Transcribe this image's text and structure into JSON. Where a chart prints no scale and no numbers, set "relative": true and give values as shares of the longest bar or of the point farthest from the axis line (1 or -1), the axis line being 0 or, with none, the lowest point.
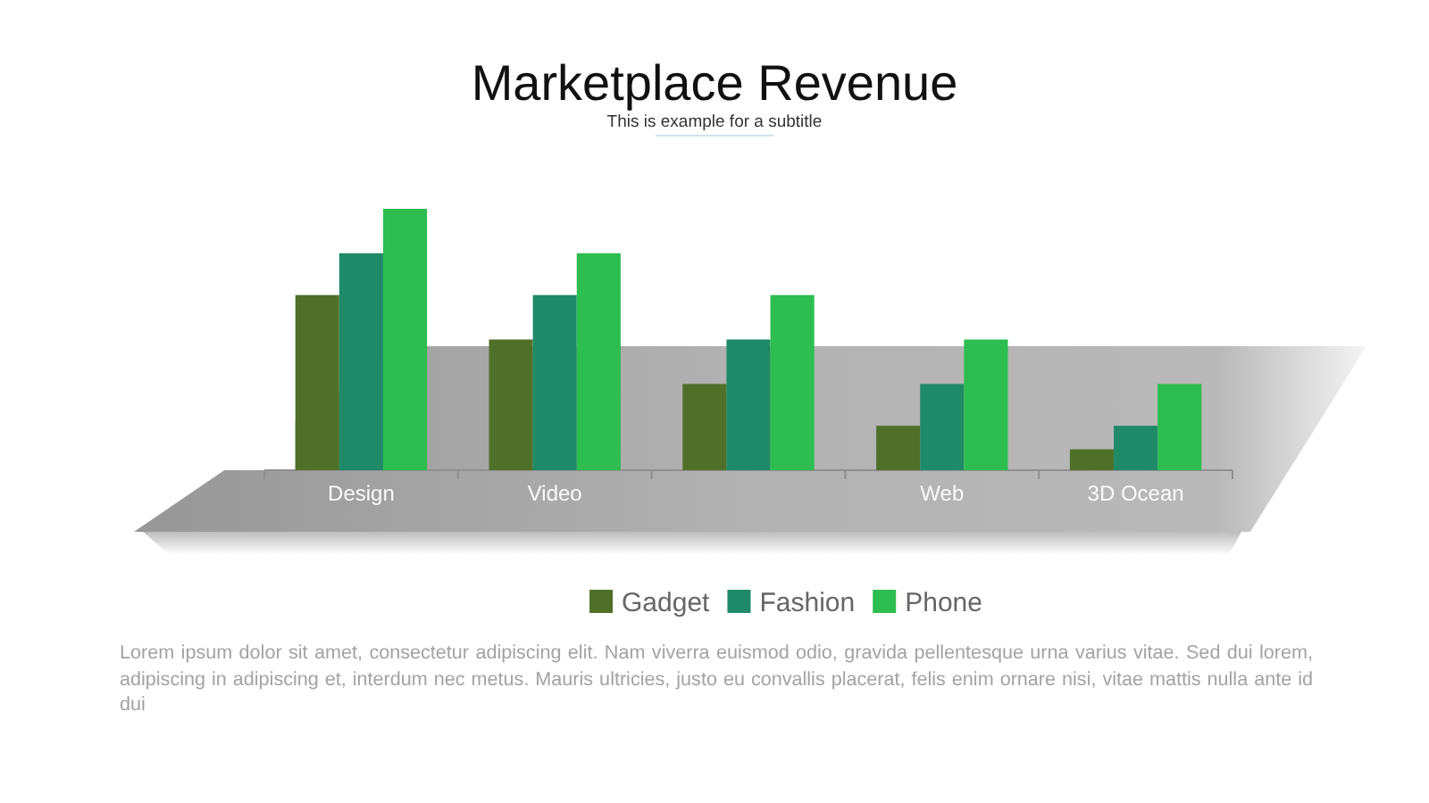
{
  "chart_data": {
    "type": "bar",
    "title": "Marketplace Revenue",
    "subtitle": "This is example for a subtitle",
    "categories": [
      "Design",
      "Video",
      null,
      "Web",
      "3D Ocean"
    ],
    "relative": true,
    "series": [
      {
        "name": "Gadget",
        "color": "#50702a",
        "values": [
          0.67,
          0.5,
          0.33,
          0.17,
          0.08
        ]
      },
      {
        "name": "Fashion",
        "color": "#1f8a68",
        "values": [
          0.83,
          0.67,
          0.5,
          0.33,
          0.17
        ]
      },
      {
        "name": "Phone",
        "color": "#2dbd50",
        "values": [
          1,
          0.83,
          0.67,
          0.5,
          0.33
        ]
      }
    ],
    "legend": "bottom",
    "annotations": [
      "Lorem ipsum dolor sit amet, consectetur adipiscing elit. Nam viverra euismod odio, gravida pellentesque urna varius vitae. Sed dui lorem, adipiscing in adipiscing et, interdum nec metus. Mauris ultricies, justo eu convallis placerat, felis enim ornare nisi, vitae mattis nulla ante id dui"
    ]
  }
}
